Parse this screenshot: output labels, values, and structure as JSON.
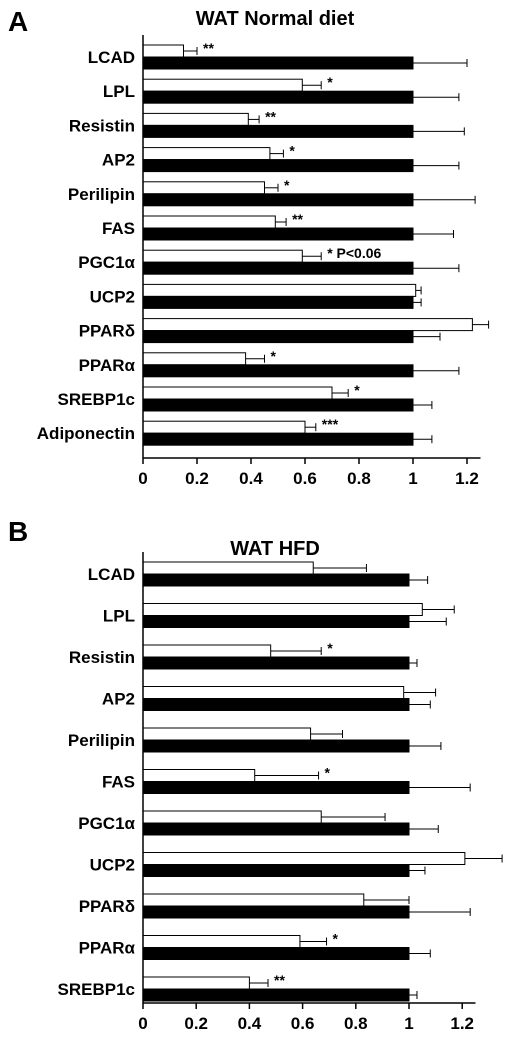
{
  "chart_data": [
    {
      "type": "bar",
      "panel_letter": "A",
      "title": "WAT Normal diet",
      "xlabel": "",
      "ylabel": "",
      "xlim": [
        0,
        1.25
      ],
      "x_ticks": [
        "0",
        "0.2",
        "0.4",
        "0.6",
        "0.8",
        "1",
        "1.2"
      ],
      "grid": false,
      "categories": [
        "LCAD",
        "LPL",
        "Resistin",
        "AP2",
        "Perilipin",
        "FAS",
        "PGC1α",
        "UCP2",
        "PPARδ",
        "PPARα",
        "SREBP1c",
        "Adiponectin"
      ],
      "series": [
        {
          "fill": "#ffffff",
          "values": [
            0.15,
            0.59,
            0.39,
            0.47,
            0.45,
            0.49,
            0.59,
            1.01,
            1.22,
            0.38,
            0.7,
            0.6
          ],
          "errors": [
            0.05,
            0.07,
            0.04,
            0.05,
            0.05,
            0.04,
            0.07,
            0.02,
            0.06,
            0.07,
            0.06,
            0.04
          ]
        },
        {
          "fill": "#000000",
          "values": [
            1,
            1,
            1,
            1,
            1,
            1,
            1,
            1,
            1,
            1,
            1,
            1
          ],
          "errors": [
            0.2,
            0.17,
            0.19,
            0.17,
            0.23,
            0.15,
            0.17,
            0.03,
            0.1,
            0.17,
            0.07,
            0.07
          ]
        }
      ],
      "annotations": [
        "**",
        "*",
        "**",
        "*",
        "*",
        "**",
        "* P<0.06",
        "",
        "",
        "*",
        "*",
        "***"
      ]
    },
    {
      "type": "bar",
      "panel_letter": "B",
      "title": "WAT HFD",
      "xlabel": "",
      "ylabel": "",
      "xlim": [
        0,
        1.25
      ],
      "x_ticks": [
        "0",
        "0.2",
        "0.4",
        "0.6",
        "0.8",
        "1",
        "1.2"
      ],
      "grid": false,
      "categories": [
        "LCAD",
        "LPL",
        "Resistin",
        "AP2",
        "Perilipin",
        "FAS",
        "PGC1α",
        "UCP2",
        "PPARδ",
        "PPARα",
        "SREBP1c"
      ],
      "series": [
        {
          "fill": "#ffffff",
          "values": [
            0.64,
            1.05,
            0.48,
            0.98,
            0.63,
            0.42,
            0.67,
            1.21,
            0.83,
            0.59,
            0.4
          ],
          "errors": [
            0.2,
            0.12,
            0.19,
            0.12,
            0.12,
            0.24,
            0.24,
            0.14,
            0.17,
            0.1,
            0.07
          ]
        },
        {
          "fill": "#000000",
          "values": [
            1,
            1,
            1,
            1,
            1,
            1,
            1,
            1,
            1,
            1,
            1
          ],
          "errors": [
            0.07,
            0.14,
            0.03,
            0.08,
            0.12,
            0.23,
            0.11,
            0.06,
            0.23,
            0.08,
            0.03
          ]
        }
      ],
      "annotations": [
        "",
        "",
        "*",
        "",
        "",
        "*",
        "",
        "",
        "",
        "*",
        "**"
      ]
    }
  ]
}
